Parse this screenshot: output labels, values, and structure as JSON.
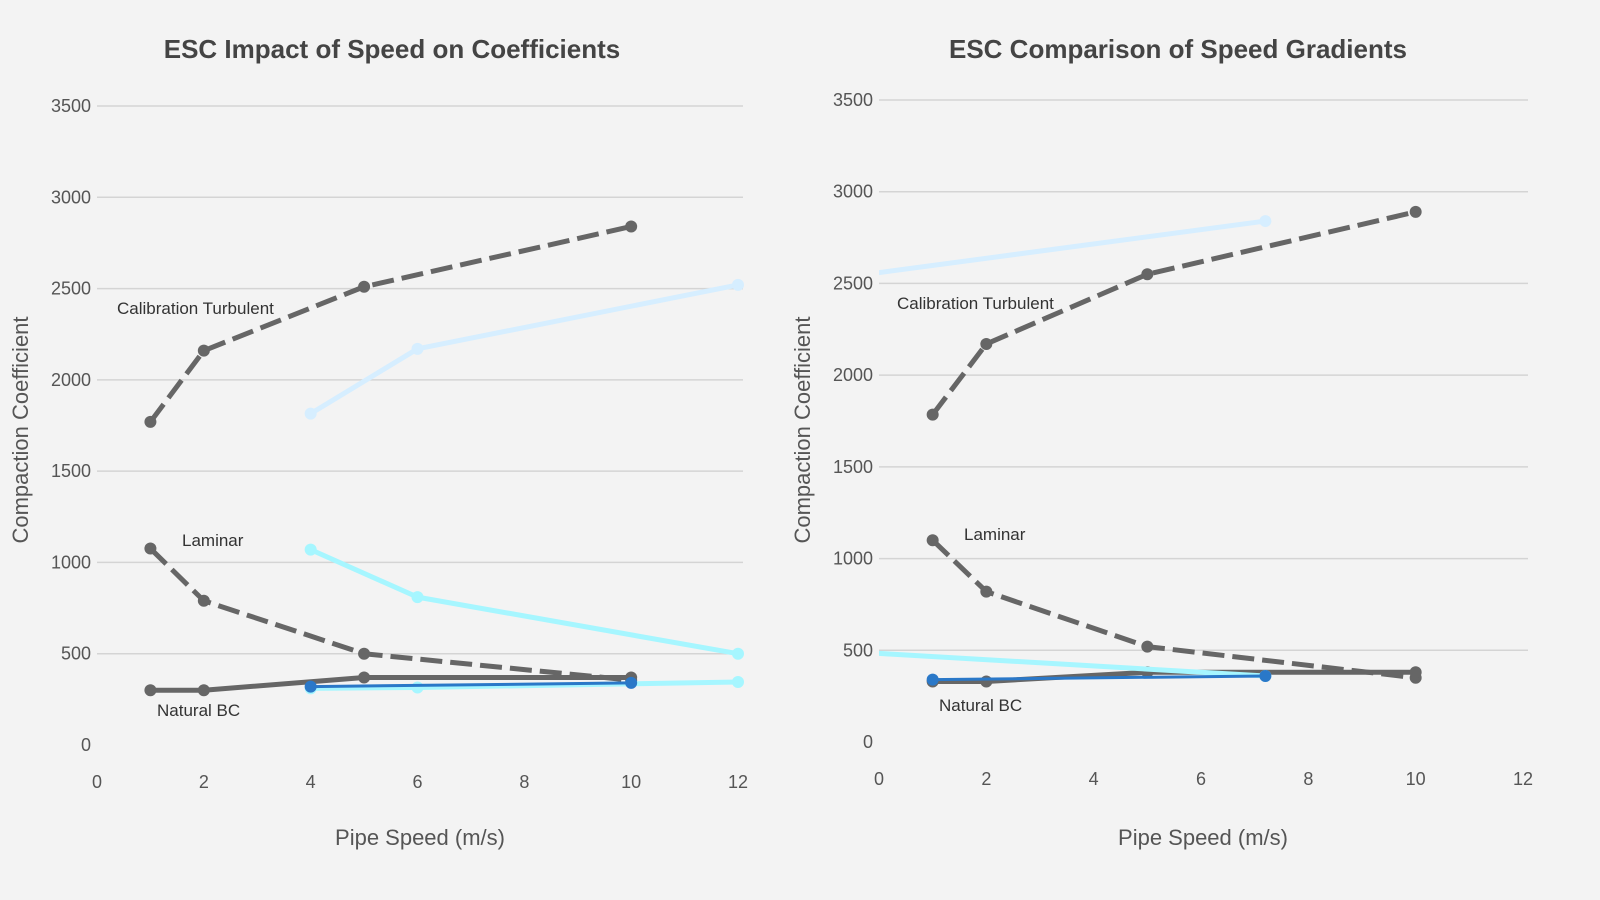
{
  "colors": {
    "background": "#f3f3f3",
    "dark": "#666666",
    "light_blue": "#d6eeff",
    "cyan": "#a6f6ff",
    "blue": "#2a78c8",
    "grid": "#d4d4d4"
  },
  "chart_data": [
    {
      "type": "line",
      "title": "ESC Impact of Speed on Coefficients",
      "xlabel": "Pipe Speed (m/s)",
      "ylabel": "Compaction Coefficient",
      "xlim": [
        0,
        12
      ],
      "ylim": [
        0,
        3500
      ],
      "xticks": [
        "0",
        "2",
        "4",
        "6",
        "8",
        "10",
        "12"
      ],
      "yticks": [
        "0",
        "500",
        "1000",
        "1500",
        "2000",
        "2500",
        "3000",
        "3500"
      ],
      "grid": true,
      "annotations": [
        "Calibration Turbulent",
        "Laminar",
        "Natural BC"
      ],
      "series": [
        {
          "color": "dark",
          "x": [
            1,
            2,
            5,
            10
          ],
          "y": [
            1770,
            2160,
            2510,
            2840
          ]
        },
        {
          "color": "dark",
          "x": [
            1,
            2,
            5,
            10
          ],
          "y": [
            1076,
            790,
            500,
            355
          ]
        },
        {
          "color": "dark",
          "x": [
            1,
            2,
            5,
            10
          ],
          "y": [
            300,
            300,
            370,
            370
          ]
        },
        {
          "color": "light_blue",
          "x": [
            4,
            6,
            12
          ],
          "y": [
            1815,
            2170,
            2520
          ]
        },
        {
          "color": "cyan",
          "x": [
            4,
            6,
            12
          ],
          "y": [
            1070,
            810,
            500
          ]
        },
        {
          "color": "cyan",
          "x": [
            4,
            6,
            12
          ],
          "y": [
            310,
            315,
            345
          ]
        },
        {
          "color": "blue",
          "x": [
            4,
            10
          ],
          "y": [
            320,
            340
          ]
        }
      ]
    },
    {
      "type": "line",
      "title": "ESC Comparison of Speed Gradients",
      "xlabel": "Pipe Speed (m/s)",
      "ylabel": "Compaction Coefficient",
      "xlim": [
        0,
        12
      ],
      "ylim": [
        0,
        3500
      ],
      "xticks": [
        "0",
        "2",
        "4",
        "6",
        "8",
        "10",
        "12"
      ],
      "yticks": [
        "0",
        "500",
        "1000",
        "1500",
        "2000",
        "2500",
        "3000",
        "3500"
      ],
      "grid": true,
      "annotations": [
        "Calibration Turbulent",
        "Laminar",
        "Natural BC"
      ],
      "series": [
        {
          "color": "dark",
          "x": [
            1,
            2,
            5,
            10
          ],
          "y": [
            1785,
            2170,
            2550,
            2890
          ]
        },
        {
          "color": "dark",
          "x": [
            1,
            2,
            5,
            10
          ],
          "y": [
            1100,
            820,
            520,
            350
          ]
        },
        {
          "color": "dark",
          "x": [
            1,
            2,
            5,
            10
          ],
          "y": [
            330,
            330,
            380,
            380
          ]
        },
        {
          "color": "light_blue",
          "x": [
            -1,
            7.2
          ],
          "y": [
            2520,
            2840
          ]
        },
        {
          "color": "cyan",
          "x": [
            -1,
            7.2
          ],
          "y": [
            500,
            360
          ]
        },
        {
          "color": "blue",
          "x": [
            1,
            7.2
          ],
          "y": [
            340,
            360
          ]
        }
      ]
    }
  ]
}
